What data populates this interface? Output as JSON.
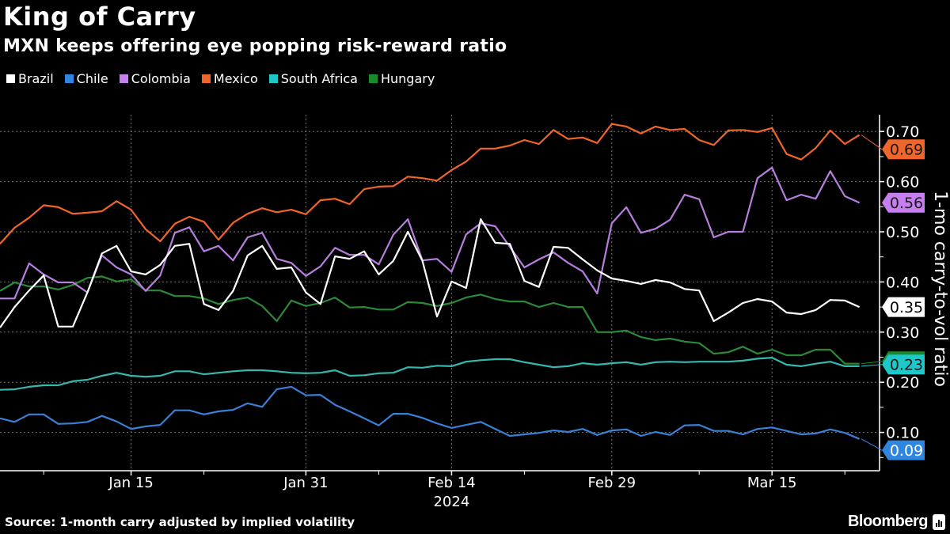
{
  "header": {
    "title": "King of Carry",
    "subtitle": "MXN keeps offering eye popping risk-reward ratio"
  },
  "footer": {
    "source": "Source: 1-month carry adjusted by implied volatility",
    "brand": "Bloomberg"
  },
  "chart_data": {
    "type": "line",
    "title": "King of Carry",
    "subtitle": "MXN keeps offering eye popping risk-reward ratio",
    "ylabel": "1-mo carry-to-vol ratio",
    "xlabel": "2024",
    "ylim": [
      -0.02,
      0.73
    ],
    "y_ticks": [
      "0.10",
      "0.20",
      "0.30",
      "0.40",
      "0.50",
      "0.60",
      "0.70"
    ],
    "x_ticks": [
      {
        "date": "2024-01-15",
        "label": "Jan 15"
      },
      {
        "date": "2024-01-31",
        "label": "Jan 31"
      },
      {
        "date": "2024-02-14",
        "label": "Feb 14"
      },
      {
        "date": "2024-02-29",
        "label": "Feb 29"
      },
      {
        "date": "2024-03-15",
        "label": "Mar 15"
      }
    ],
    "x_year_label": "2024",
    "y_axis_side": "right",
    "grid": true,
    "legend_position": "top-left",
    "x": [
      "2024-01-02",
      "2024-01-03",
      "2024-01-04",
      "2024-01-05",
      "2024-01-08",
      "2024-01-09",
      "2024-01-10",
      "2024-01-11",
      "2024-01-12",
      "2024-01-15",
      "2024-01-16",
      "2024-01-17",
      "2024-01-18",
      "2024-01-19",
      "2024-01-22",
      "2024-01-23",
      "2024-01-24",
      "2024-01-25",
      "2024-01-26",
      "2024-01-29",
      "2024-01-30",
      "2024-01-31",
      "2024-02-01",
      "2024-02-02",
      "2024-02-05",
      "2024-02-06",
      "2024-02-07",
      "2024-02-08",
      "2024-02-09",
      "2024-02-12",
      "2024-02-13",
      "2024-02-14",
      "2024-02-15",
      "2024-02-16",
      "2024-02-19",
      "2024-02-20",
      "2024-02-21",
      "2024-02-22",
      "2024-02-23",
      "2024-02-26",
      "2024-02-27",
      "2024-02-28",
      "2024-02-29",
      "2024-03-01",
      "2024-03-04",
      "2024-03-05",
      "2024-03-06",
      "2024-03-07",
      "2024-03-08",
      "2024-03-11",
      "2024-03-12",
      "2024-03-13",
      "2024-03-14",
      "2024-03-15",
      "2024-03-18",
      "2024-03-19",
      "2024-03-20",
      "2024-03-21",
      "2024-03-22",
      "2024-03-25"
    ],
    "series": [
      {
        "name": "Brazil",
        "color": "#ffffff",
        "last_label": "0.35",
        "label_text_color": "#000000",
        "values": [
          0.309,
          0.35,
          0.383,
          0.413,
          0.311,
          0.311,
          0.379,
          0.457,
          0.472,
          0.421,
          0.415,
          0.434,
          0.472,
          0.476,
          0.356,
          0.344,
          0.382,
          0.453,
          0.472,
          0.426,
          0.429,
          0.379,
          0.356,
          0.451,
          0.446,
          0.461,
          0.415,
          0.442,
          0.5,
          0.442,
          0.331,
          0.401,
          0.388,
          0.525,
          0.478,
          0.476,
          0.402,
          0.39,
          0.47,
          0.468,
          0.445,
          0.423,
          0.407,
          0.402,
          0.396,
          0.404,
          0.399,
          0.386,
          0.383,
          0.322,
          0.339,
          0.358,
          0.366,
          0.361,
          0.339,
          0.336,
          0.344,
          0.364,
          0.363,
          0.35
        ]
      },
      {
        "name": "Chile",
        "color": "#2f86e0",
        "last_label": "0.09",
        "label_text_color": "#ffffff",
        "values": [
          0.128,
          0.121,
          0.136,
          0.136,
          0.117,
          0.118,
          0.121,
          0.133,
          0.122,
          0.107,
          0.112,
          0.115,
          0.144,
          0.144,
          0.136,
          0.142,
          0.145,
          0.158,
          0.151,
          0.186,
          0.191,
          0.174,
          0.175,
          0.155,
          0.142,
          0.128,
          0.114,
          0.137,
          0.137,
          0.129,
          0.118,
          0.109,
          0.115,
          0.121,
          0.107,
          0.093,
          0.096,
          0.099,
          0.104,
          0.101,
          0.107,
          0.095,
          0.104,
          0.106,
          0.093,
          0.101,
          0.095,
          0.114,
          0.115,
          0.103,
          0.103,
          0.096,
          0.107,
          0.11,
          0.103,
          0.096,
          0.098,
          0.106,
          0.099,
          0.087
        ]
      },
      {
        "name": "Colombia",
        "color": "#c77ef0",
        "last_label": "0.56",
        "label_text_color": "#1a1a1a",
        "values": [
          0.367,
          0.367,
          0.437,
          0.415,
          0.399,
          0.399,
          0.379,
          0.453,
          0.429,
          0.415,
          0.382,
          0.413,
          0.498,
          0.509,
          0.461,
          0.472,
          0.443,
          0.489,
          0.498,
          0.446,
          0.438,
          0.412,
          0.431,
          0.468,
          0.454,
          0.454,
          0.435,
          0.494,
          0.525,
          0.443,
          0.446,
          0.42,
          0.495,
          0.517,
          0.511,
          0.47,
          0.429,
          0.445,
          0.459,
          0.438,
          0.421,
          0.377,
          0.517,
          0.549,
          0.498,
          0.506,
          0.524,
          0.574,
          0.565,
          0.489,
          0.5,
          0.5,
          0.607,
          0.628,
          0.563,
          0.574,
          0.566,
          0.621,
          0.571,
          0.558
        ]
      },
      {
        "name": "Mexico",
        "color": "#f0652a",
        "last_label": "0.69",
        "label_text_color": "#1a1a1a",
        "values": [
          0.476,
          0.508,
          0.528,
          0.553,
          0.549,
          0.536,
          0.538,
          0.541,
          0.561,
          0.544,
          0.505,
          0.481,
          0.516,
          0.53,
          0.52,
          0.484,
          0.518,
          0.536,
          0.547,
          0.539,
          0.544,
          0.535,
          0.563,
          0.566,
          0.555,
          0.585,
          0.59,
          0.591,
          0.61,
          0.607,
          0.602,
          0.623,
          0.64,
          0.666,
          0.666,
          0.672,
          0.683,
          0.675,
          0.703,
          0.685,
          0.688,
          0.677,
          0.715,
          0.71,
          0.696,
          0.71,
          0.703,
          0.705,
          0.683,
          0.673,
          0.702,
          0.703,
          0.699,
          0.707,
          0.655,
          0.644,
          0.667,
          0.702,
          0.675,
          0.693
        ]
      },
      {
        "name": "South Africa",
        "color": "#1ec8c8",
        "last_label": "0.23",
        "label_text_color": "#1a1a1a",
        "values": [
          0.185,
          0.186,
          0.191,
          0.194,
          0.194,
          0.202,
          0.205,
          0.213,
          0.219,
          0.213,
          0.211,
          0.213,
          0.222,
          0.222,
          0.216,
          0.219,
          0.222,
          0.224,
          0.224,
          0.222,
          0.219,
          0.218,
          0.219,
          0.224,
          0.213,
          0.214,
          0.218,
          0.219,
          0.23,
          0.229,
          0.233,
          0.232,
          0.241,
          0.244,
          0.246,
          0.246,
          0.24,
          0.235,
          0.23,
          0.232,
          0.238,
          0.235,
          0.238,
          0.24,
          0.235,
          0.24,
          0.241,
          0.24,
          0.241,
          0.241,
          0.241,
          0.243,
          0.247,
          0.249,
          0.235,
          0.232,
          0.237,
          0.241,
          0.232,
          0.232
        ]
      },
      {
        "name": "Hungary",
        "color": "#1a8a2a",
        "last_label": "",
        "label_text_color": "#ffffff",
        "values": [
          0.382,
          0.399,
          0.391,
          0.391,
          0.385,
          0.394,
          0.408,
          0.411,
          0.401,
          0.405,
          0.383,
          0.383,
          0.372,
          0.372,
          0.367,
          0.356,
          0.364,
          0.369,
          0.352,
          0.322,
          0.363,
          0.352,
          0.358,
          0.369,
          0.349,
          0.35,
          0.345,
          0.345,
          0.36,
          0.358,
          0.352,
          0.358,
          0.369,
          0.375,
          0.366,
          0.361,
          0.361,
          0.35,
          0.358,
          0.35,
          0.35,
          0.3,
          0.3,
          0.303,
          0.29,
          0.284,
          0.287,
          0.281,
          0.278,
          0.257,
          0.26,
          0.271,
          0.257,
          0.265,
          0.254,
          0.254,
          0.265,
          0.265,
          0.237,
          0.237
        ]
      }
    ]
  }
}
